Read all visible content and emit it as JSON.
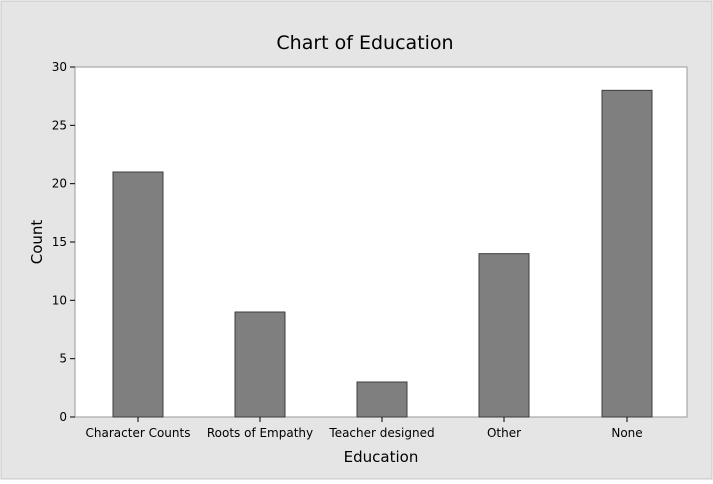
{
  "chart_data": {
    "type": "bar",
    "title": "Chart of Education",
    "xlabel": "Education",
    "ylabel": "Count",
    "categories": [
      "Character Counts",
      "Roots of Empathy",
      "Teacher designed",
      "Other",
      "None"
    ],
    "values": [
      21,
      9,
      3,
      14,
      28
    ],
    "ylim": [
      0,
      30
    ],
    "yticks": [
      "0",
      "5",
      "10",
      "15",
      "20",
      "25",
      "30"
    ],
    "grid": false,
    "legend": "none",
    "colors": {
      "background": "#e5e5e5",
      "plot_area": "#ffffff",
      "bar_fill": "#7f7f7f",
      "bar_stroke": "#3c3c3c",
      "axis": "#000000"
    }
  }
}
